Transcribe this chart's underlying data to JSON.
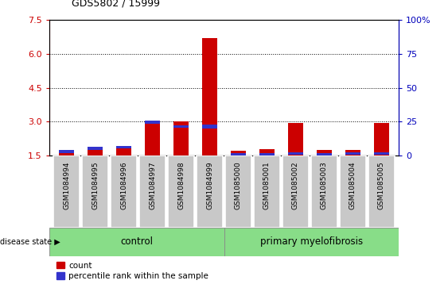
{
  "title": "GDS5802 / 15999",
  "samples": [
    "GSM1084994",
    "GSM1084995",
    "GSM1084996",
    "GSM1084997",
    "GSM1084998",
    "GSM1084999",
    "GSM1085000",
    "GSM1085001",
    "GSM1085002",
    "GSM1085003",
    "GSM1085004",
    "GSM1085005"
  ],
  "red_values": [
    1.65,
    1.75,
    1.82,
    3.05,
    3.0,
    6.72,
    1.7,
    1.78,
    2.93,
    1.75,
    1.73,
    2.93
  ],
  "blue_tops": [
    1.75,
    1.87,
    1.94,
    3.05,
    2.85,
    2.88,
    1.62,
    1.62,
    1.65,
    1.6,
    1.65,
    1.65
  ],
  "blue_heights": [
    0.13,
    0.13,
    0.13,
    0.13,
    0.13,
    0.2,
    0.11,
    0.13,
    0.13,
    0.11,
    0.13,
    0.13
  ],
  "ylim_left": [
    1.5,
    7.5
  ],
  "yticks_left": [
    1.5,
    3.0,
    4.5,
    6.0,
    7.5
  ],
  "yticks_right": [
    0,
    25,
    50,
    75,
    100
  ],
  "ylim_right": [
    0,
    100
  ],
  "n_control": 6,
  "control_label": "control",
  "disease_label": "primary myelofibrosis",
  "disease_state_label": "disease state",
  "legend_count": "count",
  "legend_percentile": "percentile rank within the sample",
  "bar_width": 0.55,
  "red_color": "#cc0000",
  "blue_color": "#3333cc",
  "bg_plot": "#ffffff",
  "bg_xtick": "#c8c8c8",
  "green_color": "#88dd88",
  "left_axis_color": "#cc0000",
  "right_axis_color": "#0000bb"
}
